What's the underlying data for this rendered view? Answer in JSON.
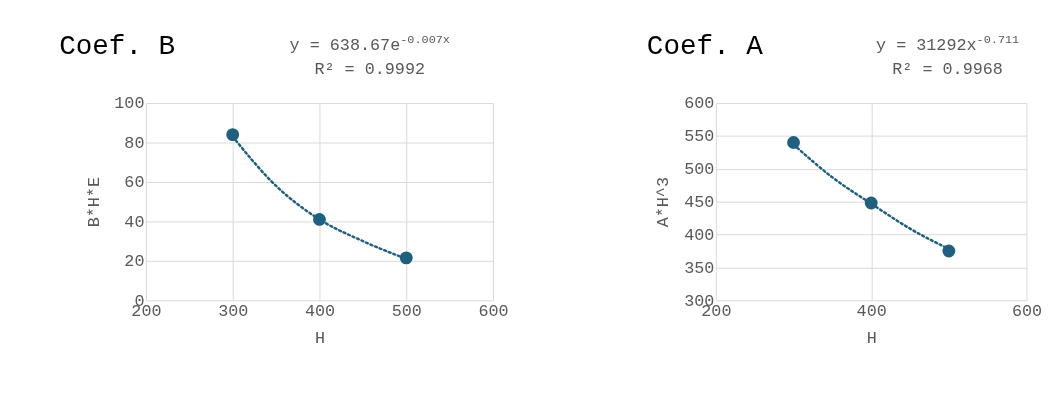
{
  "chart_data": [
    {
      "type": "scatter",
      "title": "Coef. B",
      "xlabel": "H",
      "ylabel": "B*H*E",
      "xlim": [
        200,
        600
      ],
      "xticks": [
        200,
        300,
        400,
        500,
        600
      ],
      "ylim": [
        0,
        100
      ],
      "yticks": [
        0,
        20,
        40,
        60,
        80,
        100
      ],
      "grid": true,
      "annotations": [
        "y = 638.67e$^{-0.007x}$",
        "R² = 0.9992"
      ],
      "series": [
        {
          "type": "line",
          "line_style": "dotted",
          "color": "#1f5f7f",
          "x": [
            300,
            350,
            400,
            450,
            500
          ],
          "values": [
            83,
            58,
            41,
            30,
            21
          ]
        },
        {
          "marker": "circle",
          "color": "#1f5f7f",
          "x": [
            300,
            400,
            500
          ],
          "values": [
            84,
            41,
            21.5
          ]
        }
      ]
    },
    {
      "type": "scatter",
      "title": "Coef. A",
      "xlabel": "H",
      "ylabel": "A*H^3",
      "xlim": [
        200,
        600
      ],
      "xticks": [
        200,
        400,
        600
      ],
      "ylim": [
        300,
        600
      ],
      "yticks": [
        300,
        350,
        400,
        450,
        500,
        550,
        600
      ],
      "grid": true,
      "annotations": [
        "y = 31292x$^{-0.711}$",
        "R² = 0.9968"
      ],
      "series": [
        {
          "type": "line",
          "line_style": "dotted",
          "color": "#1f5f7f",
          "x": [
            300,
            350,
            400,
            450,
            500
          ],
          "values": [
            537,
            487,
            447,
            409,
            378
          ]
        },
        {
          "marker": "circle",
          "color": "#1f5f7f",
          "x": [
            300,
            400,
            500
          ],
          "values": [
            540,
            448,
            375
          ]
        }
      ]
    }
  ]
}
